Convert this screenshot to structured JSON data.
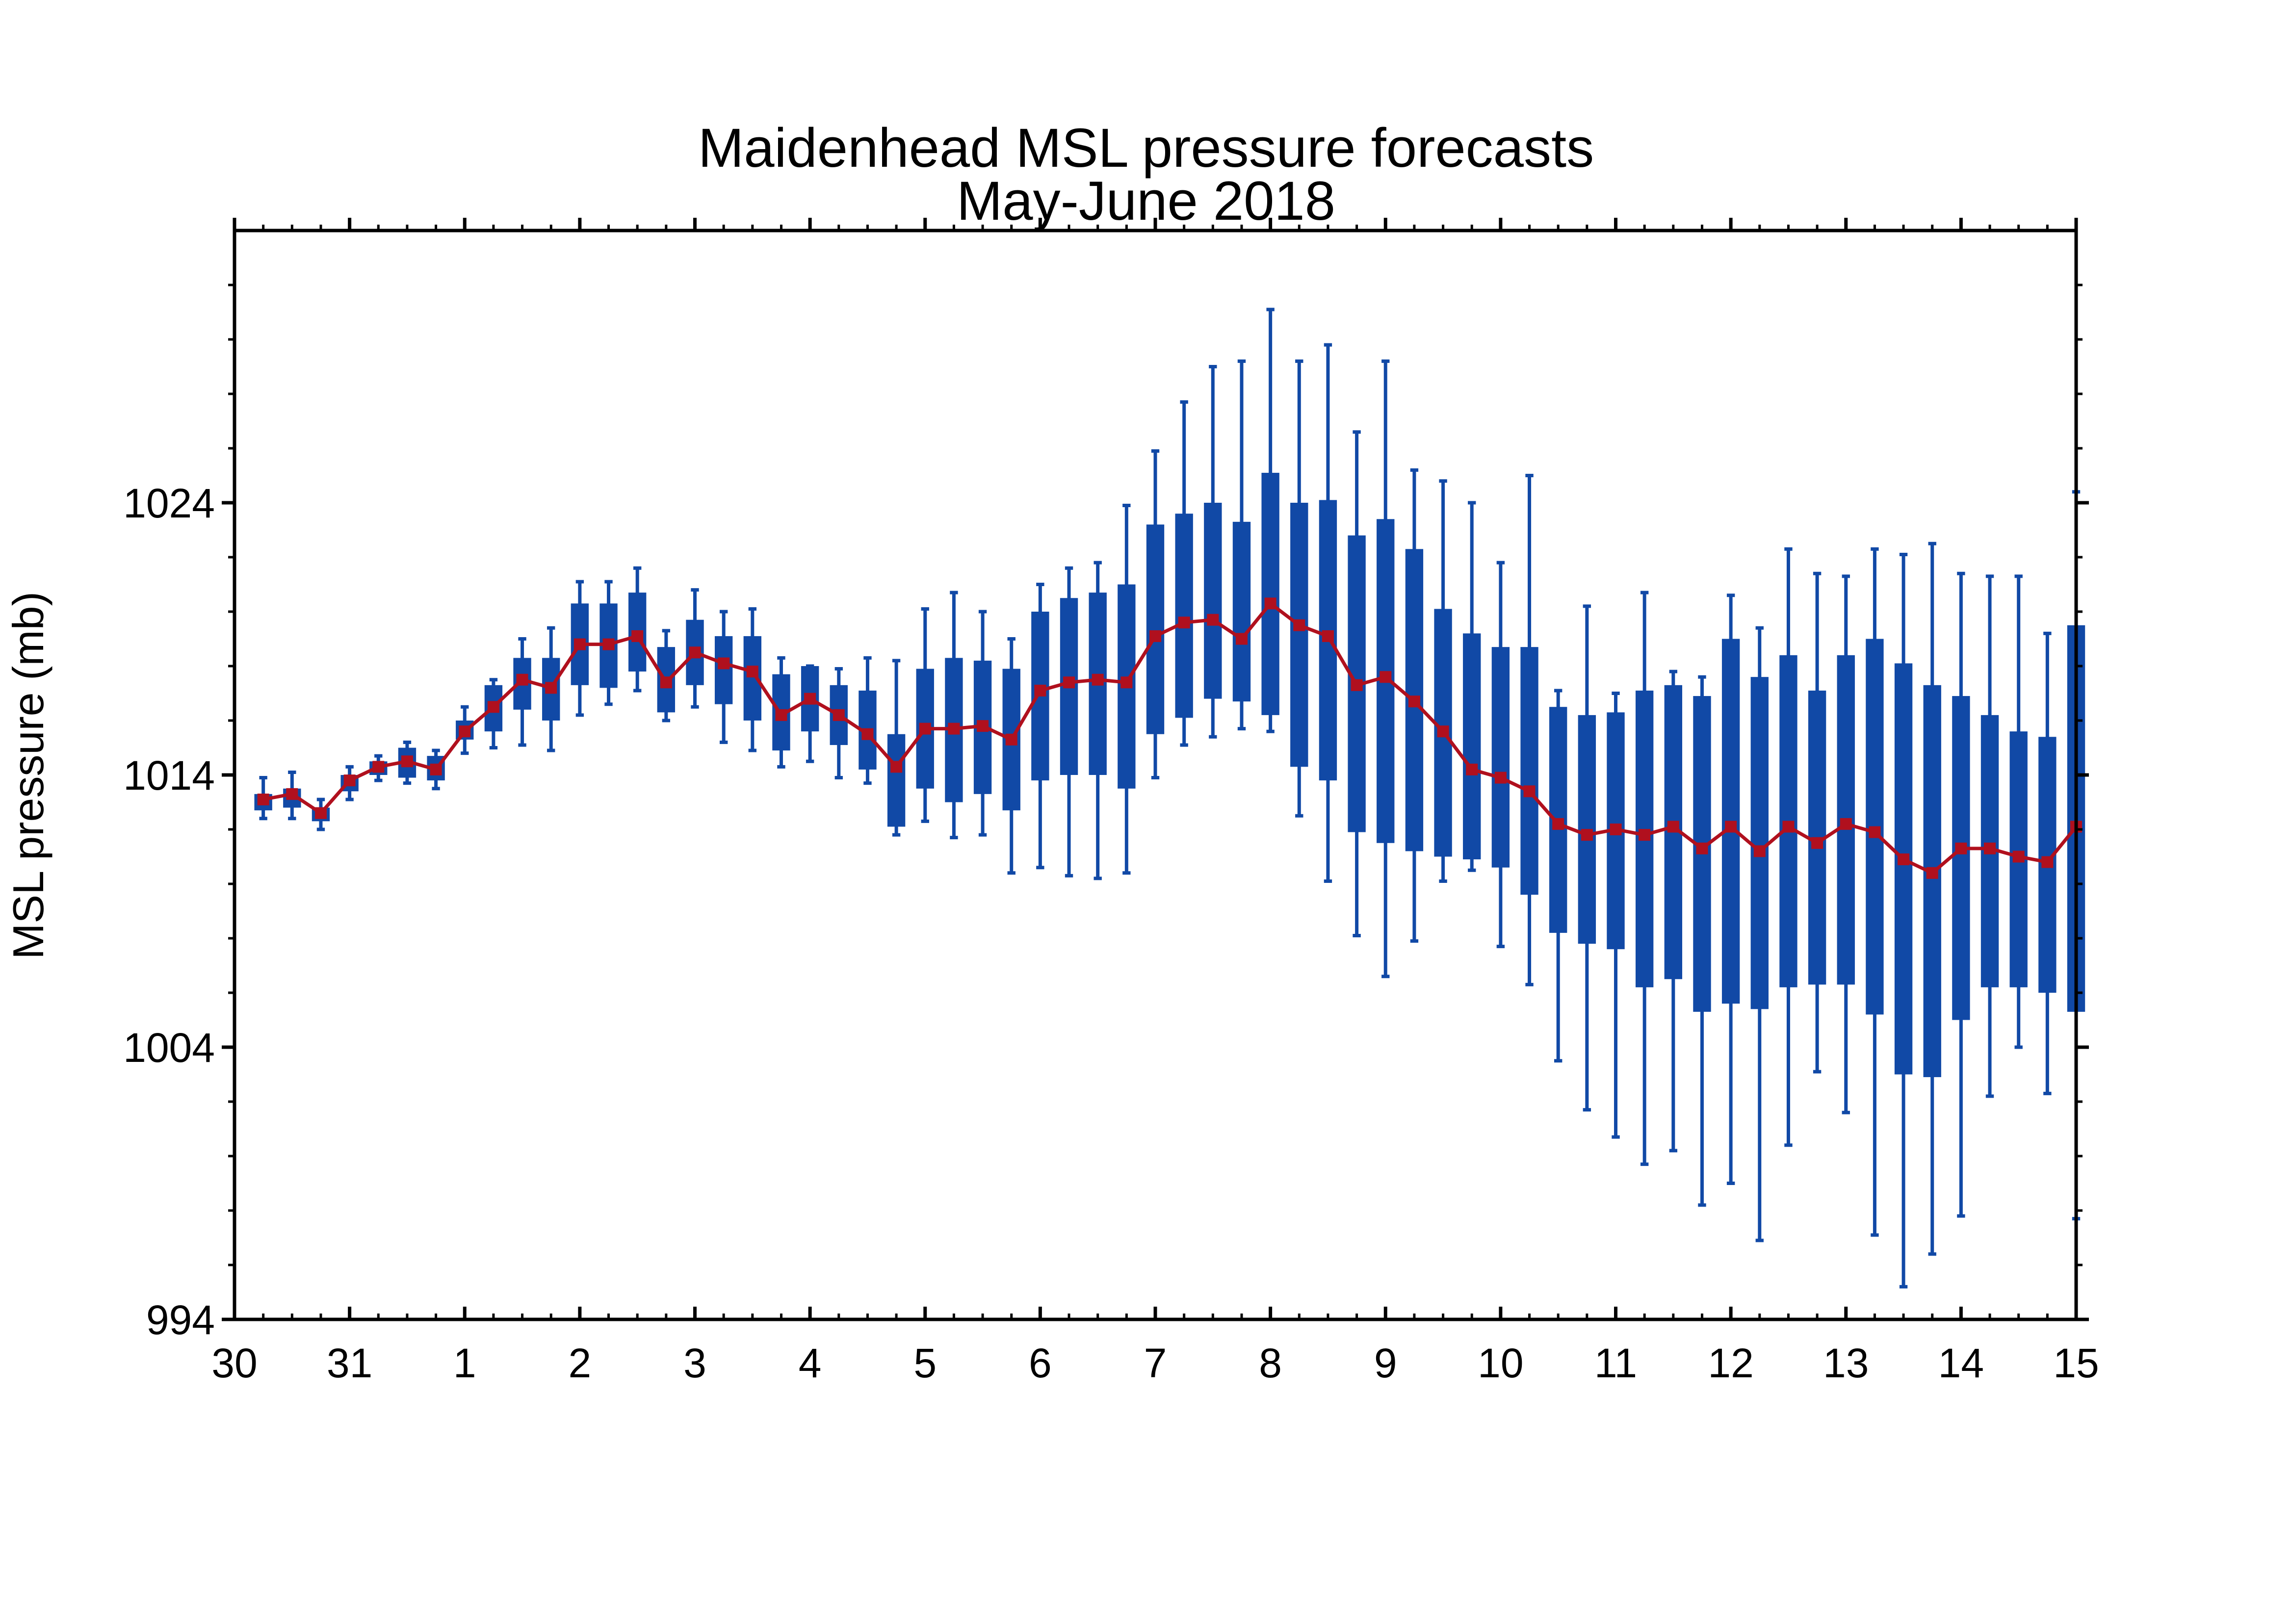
{
  "chart_data": {
    "type": "box",
    "title": "Maidenhead MSL pressure forecasts",
    "subtitle": "May-June 2018",
    "ylabel": "MSL pressure (mb)",
    "xlabel": "",
    "x_range": [
      0,
      16
    ],
    "ylim": [
      994,
      1034
    ],
    "x_ticks": [
      {
        "x": 0,
        "label": "30"
      },
      {
        "x": 1,
        "label": "31"
      },
      {
        "x": 2,
        "label": "1"
      },
      {
        "x": 3,
        "label": "2"
      },
      {
        "x": 4,
        "label": "3"
      },
      {
        "x": 5,
        "label": "4"
      },
      {
        "x": 6,
        "label": "5"
      },
      {
        "x": 7,
        "label": "6"
      },
      {
        "x": 8,
        "label": "7"
      },
      {
        "x": 9,
        "label": "8"
      },
      {
        "x": 10,
        "label": "9"
      },
      {
        "x": 11,
        "label": "10"
      },
      {
        "x": 12,
        "label": "11"
      },
      {
        "x": 13,
        "label": "12"
      },
      {
        "x": 14,
        "label": "13"
      },
      {
        "x": 15,
        "label": "14"
      },
      {
        "x": 16,
        "label": "15"
      }
    ],
    "y_ticks": [
      1024,
      1014,
      1004,
      994
    ],
    "grid": false,
    "colors": {
      "box": "#1149a6",
      "median_line": "#b0101e",
      "axes": "#000000"
    },
    "series": [
      {
        "values": [
          {
            "x": 0.25,
            "min": 1012.4,
            "q1": 1012.7,
            "q3": 1013.3,
            "max": 1013.9,
            "median": 1013.1
          },
          {
            "x": 0.5,
            "min": 1012.4,
            "q1": 1012.8,
            "q3": 1013.5,
            "max": 1014.1,
            "median": 1013.3
          },
          {
            "x": 0.75,
            "min": 1012.0,
            "q1": 1012.3,
            "q3": 1012.8,
            "max": 1013.1,
            "median": 1012.6
          },
          {
            "x": 1.0,
            "min": 1013.1,
            "q1": 1013.4,
            "q3": 1014.0,
            "max": 1014.3,
            "median": 1013.8
          },
          {
            "x": 1.25,
            "min": 1013.8,
            "q1": 1014.0,
            "q3": 1014.5,
            "max": 1014.7,
            "median": 1014.3
          },
          {
            "x": 1.5,
            "min": 1013.7,
            "q1": 1013.9,
            "q3": 1015.0,
            "max": 1015.2,
            "median": 1014.5
          },
          {
            "x": 1.75,
            "min": 1013.5,
            "q1": 1013.8,
            "q3": 1014.7,
            "max": 1014.9,
            "median": 1014.2
          },
          {
            "x": 2.0,
            "min": 1014.8,
            "q1": 1015.3,
            "q3": 1016.0,
            "max": 1016.5,
            "median": 1015.6
          },
          {
            "x": 2.25,
            "min": 1015.0,
            "q1": 1015.6,
            "q3": 1017.3,
            "max": 1017.5,
            "median": 1016.5
          },
          {
            "x": 2.5,
            "min": 1015.1,
            "q1": 1016.4,
            "q3": 1018.3,
            "max": 1019.0,
            "median": 1017.5
          },
          {
            "x": 2.75,
            "min": 1014.9,
            "q1": 1016.0,
            "q3": 1018.3,
            "max": 1019.4,
            "median": 1017.2
          },
          {
            "x": 3.0,
            "min": 1016.2,
            "q1": 1017.3,
            "q3": 1020.3,
            "max": 1021.1,
            "median": 1018.8
          },
          {
            "x": 3.25,
            "min": 1016.6,
            "q1": 1017.2,
            "q3": 1020.3,
            "max": 1021.1,
            "median": 1018.8
          },
          {
            "x": 3.5,
            "min": 1017.1,
            "q1": 1017.8,
            "q3": 1020.7,
            "max": 1021.6,
            "median": 1019.1
          },
          {
            "x": 3.75,
            "min": 1016.0,
            "q1": 1016.3,
            "q3": 1018.7,
            "max": 1019.3,
            "median": 1017.4
          },
          {
            "x": 4.0,
            "min": 1016.5,
            "q1": 1017.3,
            "q3": 1019.7,
            "max": 1020.8,
            "median": 1018.5
          },
          {
            "x": 4.25,
            "min": 1015.2,
            "q1": 1016.6,
            "q3": 1019.1,
            "max": 1020.0,
            "median": 1018.1
          },
          {
            "x": 4.5,
            "min": 1014.9,
            "q1": 1016.0,
            "q3": 1019.1,
            "max": 1020.1,
            "median": 1017.8
          },
          {
            "x": 4.75,
            "min": 1014.3,
            "q1": 1014.9,
            "q3": 1017.7,
            "max": 1018.3,
            "median": 1016.2
          },
          {
            "x": 5.0,
            "min": 1014.5,
            "q1": 1015.6,
            "q3": 1018.0,
            "max": 1018.0,
            "median": 1016.8
          },
          {
            "x": 5.25,
            "min": 1013.9,
            "q1": 1015.1,
            "q3": 1017.3,
            "max": 1017.9,
            "median": 1016.2
          },
          {
            "x": 5.5,
            "min": 1013.7,
            "q1": 1014.2,
            "q3": 1017.1,
            "max": 1018.3,
            "median": 1015.5
          },
          {
            "x": 5.75,
            "min": 1011.8,
            "q1": 1012.1,
            "q3": 1015.5,
            "max": 1018.2,
            "median": 1014.3
          },
          {
            "x": 6.0,
            "min": 1012.3,
            "q1": 1013.5,
            "q3": 1017.9,
            "max": 1020.1,
            "median": 1015.7
          },
          {
            "x": 6.25,
            "min": 1011.7,
            "q1": 1013.0,
            "q3": 1018.3,
            "max": 1020.7,
            "median": 1015.7
          },
          {
            "x": 6.5,
            "min": 1011.8,
            "q1": 1013.3,
            "q3": 1018.2,
            "max": 1020.0,
            "median": 1015.8
          },
          {
            "x": 6.75,
            "min": 1010.4,
            "q1": 1012.7,
            "q3": 1017.9,
            "max": 1019.0,
            "median": 1015.3
          },
          {
            "x": 7.0,
            "min": 1010.6,
            "q1": 1013.8,
            "q3": 1020.0,
            "max": 1021.0,
            "median": 1017.1
          },
          {
            "x": 7.25,
            "min": 1010.3,
            "q1": 1014.0,
            "q3": 1020.5,
            "max": 1021.6,
            "median": 1017.4
          },
          {
            "x": 7.5,
            "min": 1010.2,
            "q1": 1014.0,
            "q3": 1020.7,
            "max": 1021.8,
            "median": 1017.5
          },
          {
            "x": 7.75,
            "min": 1010.4,
            "q1": 1013.5,
            "q3": 1021.0,
            "max": 1023.9,
            "median": 1017.4
          },
          {
            "x": 8.0,
            "min": 1013.9,
            "q1": 1015.5,
            "q3": 1023.2,
            "max": 1025.9,
            "median": 1019.1
          },
          {
            "x": 8.25,
            "min": 1015.1,
            "q1": 1016.1,
            "q3": 1023.6,
            "max": 1027.7,
            "median": 1019.6
          },
          {
            "x": 8.5,
            "min": 1015.4,
            "q1": 1016.8,
            "q3": 1024.0,
            "max": 1029.0,
            "median": 1019.7
          },
          {
            "x": 8.75,
            "min": 1015.7,
            "q1": 1016.7,
            "q3": 1023.3,
            "max": 1029.2,
            "median": 1019.0
          },
          {
            "x": 9.0,
            "min": 1015.6,
            "q1": 1016.2,
            "q3": 1025.1,
            "max": 1031.1,
            "median": 1020.3
          },
          {
            "x": 9.25,
            "min": 1012.5,
            "q1": 1014.3,
            "q3": 1024.0,
            "max": 1029.2,
            "median": 1019.5
          },
          {
            "x": 9.5,
            "min": 1010.1,
            "q1": 1013.8,
            "q3": 1024.1,
            "max": 1029.8,
            "median": 1019.1
          },
          {
            "x": 9.75,
            "min": 1008.1,
            "q1": 1011.9,
            "q3": 1022.8,
            "max": 1026.6,
            "median": 1017.3
          },
          {
            "x": 10.0,
            "min": 1006.6,
            "q1": 1011.5,
            "q3": 1023.4,
            "max": 1029.2,
            "median": 1017.6
          },
          {
            "x": 10.25,
            "min": 1007.9,
            "q1": 1011.2,
            "q3": 1022.3,
            "max": 1025.2,
            "median": 1016.7
          },
          {
            "x": 10.5,
            "min": 1010.1,
            "q1": 1011.0,
            "q3": 1020.1,
            "max": 1024.8,
            "median": 1015.6
          },
          {
            "x": 10.75,
            "min": 1010.5,
            "q1": 1010.9,
            "q3": 1019.2,
            "max": 1024.0,
            "median": 1014.2
          },
          {
            "x": 11.0,
            "min": 1007.7,
            "q1": 1010.6,
            "q3": 1018.7,
            "max": 1021.8,
            "median": 1013.9
          },
          {
            "x": 11.25,
            "min": 1006.3,
            "q1": 1009.6,
            "q3": 1018.7,
            "max": 1025.0,
            "median": 1013.4
          },
          {
            "x": 11.5,
            "min": 1003.5,
            "q1": 1008.2,
            "q3": 1016.5,
            "max": 1017.1,
            "median": 1012.2
          },
          {
            "x": 11.75,
            "min": 1001.7,
            "q1": 1007.8,
            "q3": 1016.2,
            "max": 1020.2,
            "median": 1011.8
          },
          {
            "x": 12.0,
            "min": 1000.7,
            "q1": 1007.6,
            "q3": 1016.3,
            "max": 1017.0,
            "median": 1012.0
          },
          {
            "x": 12.25,
            "min": 999.7,
            "q1": 1006.2,
            "q3": 1017.1,
            "max": 1020.7,
            "median": 1011.8
          },
          {
            "x": 12.5,
            "min": 1000.2,
            "q1": 1006.5,
            "q3": 1017.3,
            "max": 1017.8,
            "median": 1012.1
          },
          {
            "x": 12.75,
            "min": 998.2,
            "q1": 1005.3,
            "q3": 1016.9,
            "max": 1017.6,
            "median": 1011.3
          },
          {
            "x": 13.0,
            "min": 999.0,
            "q1": 1005.6,
            "q3": 1019.0,
            "max": 1020.6,
            "median": 1012.1
          },
          {
            "x": 13.25,
            "min": 996.9,
            "q1": 1005.4,
            "q3": 1017.6,
            "max": 1019.4,
            "median": 1011.2
          },
          {
            "x": 13.5,
            "min": 1000.4,
            "q1": 1006.2,
            "q3": 1018.4,
            "max": 1022.3,
            "median": 1012.1
          },
          {
            "x": 13.75,
            "min": 1003.1,
            "q1": 1006.3,
            "q3": 1017.1,
            "max": 1021.4,
            "median": 1011.5
          },
          {
            "x": 14.0,
            "min": 1001.6,
            "q1": 1006.3,
            "q3": 1018.4,
            "max": 1021.3,
            "median": 1012.2
          },
          {
            "x": 14.25,
            "min": 997.1,
            "q1": 1005.2,
            "q3": 1019.0,
            "max": 1022.3,
            "median": 1011.9
          },
          {
            "x": 14.5,
            "min": 995.2,
            "q1": 1003.0,
            "q3": 1018.1,
            "max": 1022.1,
            "median": 1010.9
          },
          {
            "x": 14.75,
            "min": 996.4,
            "q1": 1002.9,
            "q3": 1017.3,
            "max": 1022.5,
            "median": 1010.4
          },
          {
            "x": 15.0,
            "min": 997.8,
            "q1": 1005.0,
            "q3": 1016.9,
            "max": 1021.4,
            "median": 1011.3
          },
          {
            "x": 15.25,
            "min": 1002.2,
            "q1": 1006.2,
            "q3": 1016.2,
            "max": 1021.3,
            "median": 1011.3
          },
          {
            "x": 15.5,
            "min": 1004.0,
            "q1": 1006.2,
            "q3": 1015.6,
            "max": 1021.3,
            "median": 1011.0
          },
          {
            "x": 15.75,
            "min": 1002.3,
            "q1": 1006.0,
            "q3": 1015.4,
            "max": 1019.2,
            "median": 1010.8
          },
          {
            "x": 16.0,
            "min": 997.7,
            "q1": 1005.3,
            "q3": 1019.5,
            "max": 1024.4,
            "median": 1012.1
          }
        ]
      }
    ]
  }
}
